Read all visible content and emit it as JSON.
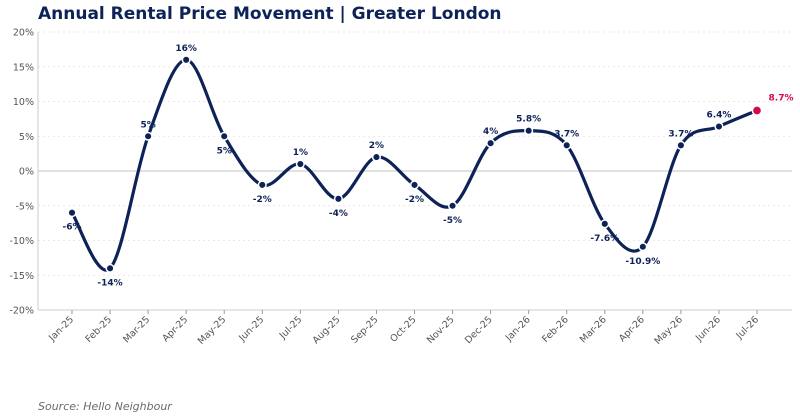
{
  "title": "Annual Rental Price Movement  |  Greater London",
  "source": "Source: Hello Neighbour",
  "colors": {
    "line": "#0d2257",
    "highlight": "#d4084b",
    "grid": "#e2e2e2",
    "zero": "#cfcfcf"
  },
  "chart_data": {
    "type": "line",
    "categories": [
      "Jan-25",
      "Feb-25",
      "Mar-25",
      "Apr-25",
      "May-25",
      "Jun-25",
      "Jul-25",
      "Aug-25",
      "Sep-25",
      "Oct-25",
      "Nov-25",
      "Dec-25",
      "Jan-26",
      "Feb-26",
      "Mar-26",
      "Apr-26",
      "May-26",
      "Jun-26",
      "Jul-26"
    ],
    "values": [
      -6,
      -14,
      5,
      16,
      5,
      -2,
      1,
      -4,
      2,
      -2,
      -5,
      4,
      5.8,
      3.7,
      -7.6,
      -10.9,
      3.7,
      6.4,
      8.7
    ],
    "labels": [
      "-6%",
      "-14%",
      "5%",
      "16%",
      "5%",
      "-2%",
      "1%",
      "-4%",
      "2%",
      "-2%",
      "-5%",
      "4%",
      "5.8%",
      "3.7%",
      "-7.6%",
      "-10.9%",
      "3.7%",
      "6.4%",
      "8.7%"
    ],
    "highlight_last": true,
    "ylim": [
      -20,
      20
    ],
    "yticks": [
      -20,
      -15,
      -10,
      -5,
      0,
      5,
      10,
      15,
      20
    ],
    "ytick_labels": [
      "-20%",
      "-15%",
      "-10%",
      "-5%",
      "0%",
      "5%",
      "10%",
      "15%",
      "20%"
    ],
    "grid": true,
    "xlabel": "",
    "ylabel": ""
  }
}
